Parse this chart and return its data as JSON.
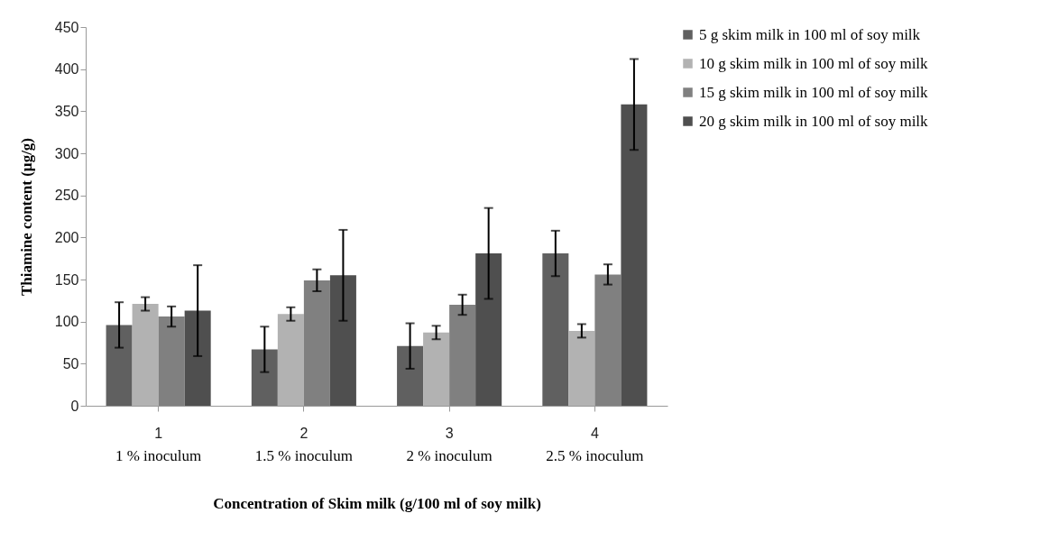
{
  "chart_data": {
    "type": "bar",
    "xlabel": "Concentration of Skim milk (g/100 ml of soy milk)",
    "ylabel": "Thiamine content (µg/g)",
    "categories": [
      "1",
      "2",
      "3",
      "4"
    ],
    "annotations": [
      "1 % inoculum",
      "1.5 % inoculum",
      "2 % inoculum",
      "2.5 % inoculum"
    ],
    "series": [
      {
        "name": "5 g skim milk in 100 ml of soy milk",
        "color": "#606060",
        "values": [
          96,
          67,
          71,
          181
        ],
        "errors": [
          27,
          27,
          27,
          27
        ]
      },
      {
        "name": "10 g  skim milk in 100 ml of soy milk",
        "color": "#b2b2b2",
        "values": [
          121,
          109,
          87,
          89
        ],
        "errors": [
          8,
          8,
          8,
          8
        ]
      },
      {
        "name": "15 g skim milk in 100 ml of soy milk",
        "color": "#808080",
        "values": [
          106,
          149,
          120,
          156
        ],
        "errors": [
          12,
          13,
          12,
          12
        ]
      },
      {
        "name": "20 g skim milk in 100 ml of soy milk",
        "color": "#4f4f4f",
        "values": [
          113,
          155,
          181,
          358
        ],
        "errors": [
          54,
          54,
          54,
          54
        ]
      }
    ],
    "ylim": [
      0,
      450
    ],
    "yticks": [
      0,
      50,
      100,
      150,
      200,
      250,
      300,
      350,
      400,
      450
    ],
    "grid": false,
    "legend": "right"
  }
}
